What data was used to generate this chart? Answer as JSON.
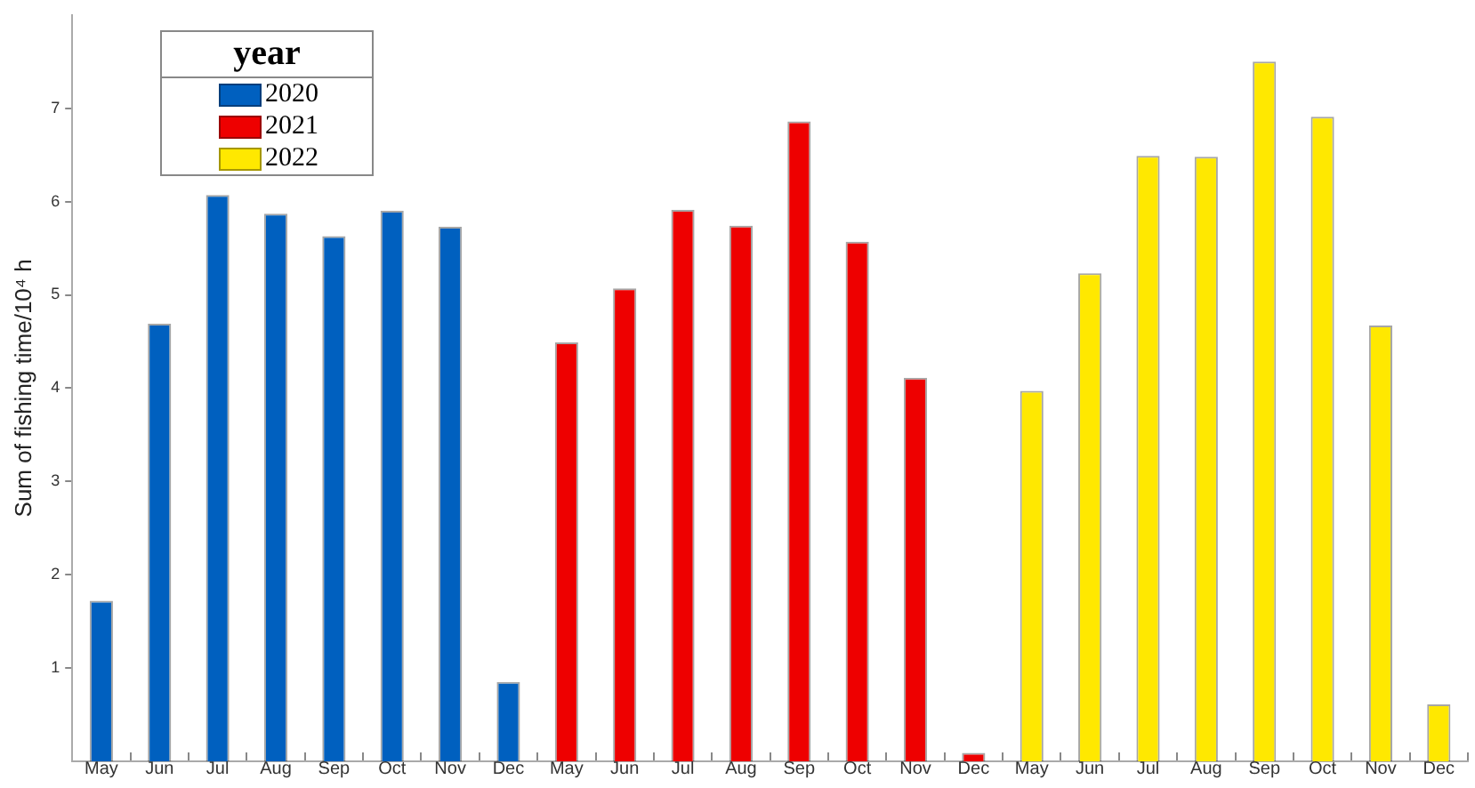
{
  "chart_data": {
    "type": "bar",
    "ylabel": "Sum of fishing time/10⁴ h",
    "legend_title": "year",
    "legend": "top left",
    "grid": false,
    "categories": [
      "May",
      "Jun",
      "Jul",
      "Aug",
      "Sep",
      "Oct",
      "Nov",
      "Dec",
      "May",
      "Jun",
      "Jul",
      "Aug",
      "Sep",
      "Oct",
      "Nov",
      "Dec",
      "May",
      "Jun",
      "Jul",
      "Aug",
      "Sep",
      "Oct",
      "Nov",
      "Dec"
    ],
    "ylim": [
      0,
      8
    ],
    "yticks": [
      1,
      2,
      3,
      4,
      5,
      6,
      7
    ],
    "series": [
      {
        "name": "2020",
        "color": "#0060bf",
        "values": [
          1.72,
          4.69,
          6.07,
          5.87,
          5.63,
          5.9,
          5.73,
          0.85,
          null,
          null,
          null,
          null,
          null,
          null,
          null,
          null,
          null,
          null,
          null,
          null,
          null,
          null,
          null,
          null
        ]
      },
      {
        "name": "2021",
        "color": "#ee0000",
        "values": [
          null,
          null,
          null,
          null,
          null,
          null,
          null,
          null,
          4.49,
          5.07,
          5.91,
          5.74,
          6.86,
          5.57,
          4.11,
          0.09,
          null,
          null,
          null,
          null,
          null,
          null,
          null,
          null
        ]
      },
      {
        "name": "2022",
        "color": "#ffe800",
        "values": [
          null,
          null,
          null,
          null,
          null,
          null,
          null,
          null,
          null,
          null,
          null,
          null,
          null,
          null,
          null,
          null,
          3.97,
          5.23,
          6.49,
          6.48,
          7.5,
          6.91,
          4.67,
          0.61
        ]
      }
    ]
  }
}
